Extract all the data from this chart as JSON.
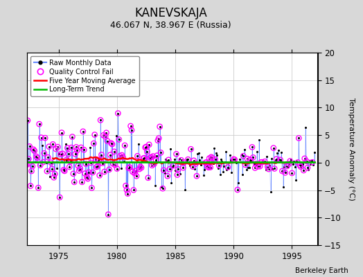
{
  "title": "KANEVSKAJA",
  "subtitle": "46.067 N, 38.967 E (Russia)",
  "ylabel": "Temperature Anomaly (°C)",
  "credit": "Berkeley Earth",
  "xlim": [
    1972.3,
    1997.2
  ],
  "ylim": [
    -15,
    20
  ],
  "yticks": [
    -15,
    -10,
    -5,
    0,
    5,
    10,
    15,
    20
  ],
  "xticks": [
    1975,
    1980,
    1985,
    1990,
    1995
  ],
  "bg_color": "#d8d8d8",
  "plot_bg_color": "#ffffff",
  "raw_color": "#6688ff",
  "qc_color": "#ff00ff",
  "ma_color": "#ff0000",
  "trend_color": "#00bb00",
  "title_fontsize": 12,
  "subtitle_fontsize": 9,
  "seed": 42
}
